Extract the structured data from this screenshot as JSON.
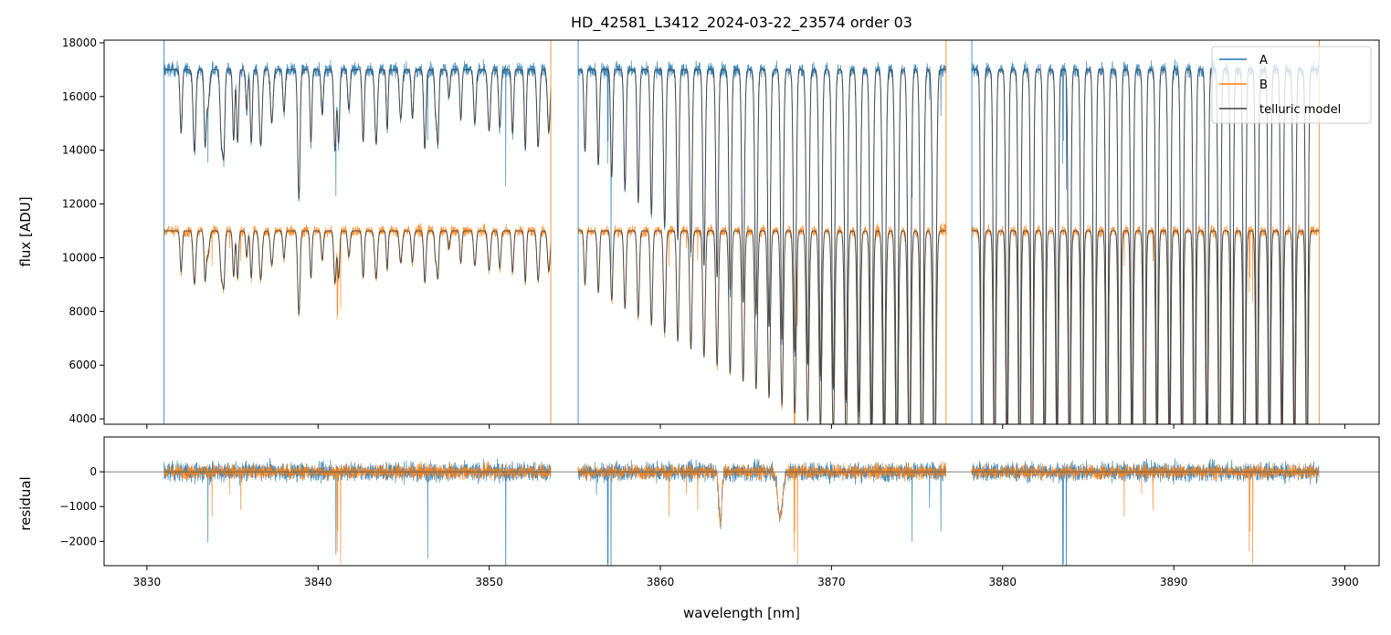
{
  "chart_data": [
    {
      "type": "line",
      "title": "HD_42581_L3412_2024-03-22_23574  order 03",
      "xlabel": "",
      "ylabel": "flux [ADU]",
      "xlim": [
        3827.5,
        3902.0
      ],
      "ylim": [
        3800,
        18100
      ],
      "yticks": [
        4000,
        6000,
        8000,
        10000,
        12000,
        14000,
        16000,
        18000
      ],
      "yticklabels": [
        "4000",
        "6000",
        "8000",
        "10000",
        "12000",
        "14000",
        "16000",
        "18000"
      ],
      "xticks": [
        3830,
        3840,
        3850,
        3860,
        3870,
        3880,
        3890,
        3900
      ],
      "grid": false,
      "legend": "top-right",
      "series": [
        {
          "name": "A",
          "color": "#1f77b4",
          "continuum": 17000,
          "segments": [
            [
              3831.0,
              3853.6
            ],
            [
              3855.2,
              3876.7
            ],
            [
              3878.2,
              3898.5
            ]
          ]
        },
        {
          "name": "B",
          "color": "#ff7f0e",
          "continuum": 11000,
          "segments": [
            [
              3831.0,
              3853.6
            ],
            [
              3855.2,
              3876.7
            ],
            [
              3878.2,
              3898.5
            ]
          ]
        },
        {
          "name": "telluric model",
          "color": "#404040"
        }
      ]
    },
    {
      "type": "line",
      "title": "",
      "xlabel": "wavelength [nm]",
      "ylabel": "residual",
      "xlim": [
        3827.5,
        3902.0
      ],
      "ylim": [
        -2700,
        1000
      ],
      "yticks": [
        -2000,
        -1000,
        0
      ],
      "yticklabels": [
        "−2000",
        "−1000",
        "0"
      ],
      "xticks": [
        3830,
        3840,
        3850,
        3860,
        3870,
        3880,
        3890,
        3900
      ],
      "xticklabels": [
        "3830",
        "3840",
        "3850",
        "3860",
        "3870",
        "3880",
        "3890",
        "3900"
      ],
      "zero_line": 0,
      "series": [
        {
          "name": "A",
          "color": "#1f77b4"
        },
        {
          "name": "B",
          "color": "#ff7f0e"
        }
      ]
    }
  ]
}
